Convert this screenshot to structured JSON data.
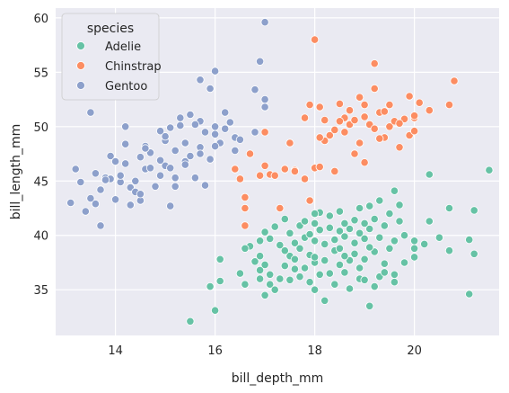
{
  "chart_data": {
    "type": "scatter",
    "title": "",
    "xlabel": "bill_depth_mm",
    "ylabel": "bill_length_mm",
    "xlim": [
      12.8,
      21.7
    ],
    "ylim": [
      30.8,
      60.9
    ],
    "xticks": [
      14,
      16,
      18,
      20
    ],
    "yticks": [
      35,
      40,
      45,
      50,
      55,
      60
    ],
    "grid": true,
    "legend": {
      "title": "species",
      "placement": "top-left"
    },
    "series": [
      {
        "name": "Adelie",
        "color": "#66c2a5",
        "points": [
          [
            15.5,
            32.1
          ],
          [
            16.0,
            33.1
          ],
          [
            15.9,
            35.3
          ],
          [
            16.1,
            35.8
          ],
          [
            16.1,
            37.8
          ],
          [
            16.5,
            36.5
          ],
          [
            16.6,
            35.5
          ],
          [
            16.8,
            37.6
          ],
          [
            16.9,
            36.0
          ],
          [
            16.9,
            36.8
          ],
          [
            17.0,
            34.5
          ],
          [
            17.1,
            35.5
          ],
          [
            17.2,
            35.0
          ],
          [
            17.1,
            36.4
          ],
          [
            17.3,
            36.0
          ],
          [
            17.4,
            37.2
          ],
          [
            17.5,
            35.9
          ],
          [
            17.6,
            36.9
          ],
          [
            17.5,
            38.1
          ],
          [
            17.6,
            37.8
          ],
          [
            17.7,
            36.2
          ],
          [
            17.8,
            37.0
          ],
          [
            17.9,
            35.7
          ],
          [
            17.9,
            38.2
          ],
          [
            18.0,
            37.5
          ],
          [
            18.0,
            35.0
          ],
          [
            18.1,
            36.4
          ],
          [
            18.2,
            37.7
          ],
          [
            18.2,
            34.0
          ],
          [
            18.3,
            36.5
          ],
          [
            18.4,
            35.5
          ],
          [
            18.4,
            38.6
          ],
          [
            18.5,
            37.3
          ],
          [
            18.5,
            38.8
          ],
          [
            18.6,
            36.6
          ],
          [
            18.7,
            35.1
          ],
          [
            18.7,
            37.7
          ],
          [
            18.8,
            38.3
          ],
          [
            18.9,
            36.0
          ],
          [
            19.0,
            35.9
          ],
          [
            19.0,
            37.8
          ],
          [
            19.1,
            33.5
          ],
          [
            19.2,
            38.5
          ],
          [
            19.2,
            35.3
          ],
          [
            19.3,
            36.2
          ],
          [
            19.4,
            37.4
          ],
          [
            19.5,
            38.8
          ],
          [
            19.6,
            36.4
          ],
          [
            19.6,
            35.7
          ],
          [
            19.8,
            37.5
          ],
          [
            16.7,
            39.0
          ],
          [
            16.9,
            39.5
          ],
          [
            17.0,
            40.3
          ],
          [
            17.1,
            39.7
          ],
          [
            17.2,
            40.8
          ],
          [
            17.3,
            39.1
          ],
          [
            17.4,
            41.5
          ],
          [
            17.5,
            40.2
          ],
          [
            17.6,
            39.3
          ],
          [
            17.7,
            40.9
          ],
          [
            17.8,
            39.8
          ],
          [
            17.8,
            41.3
          ],
          [
            17.9,
            40.1
          ],
          [
            18.0,
            39.5
          ],
          [
            18.0,
            41.1
          ],
          [
            18.1,
            40.5
          ],
          [
            18.1,
            42.1
          ],
          [
            18.2,
            39.2
          ],
          [
            18.3,
            40.7
          ],
          [
            18.3,
            41.8
          ],
          [
            18.4,
            39.6
          ],
          [
            18.5,
            40.4
          ],
          [
            18.5,
            42.2
          ],
          [
            18.6,
            41.1
          ],
          [
            18.6,
            39.9
          ],
          [
            18.7,
            40.6
          ],
          [
            18.8,
            41.4
          ],
          [
            18.8,
            39.3
          ],
          [
            18.9,
            40.2
          ],
          [
            18.9,
            42.5
          ],
          [
            19.0,
            39.7
          ],
          [
            19.0,
            41.1
          ],
          [
            19.1,
            40.6
          ],
          [
            19.1,
            38.9
          ],
          [
            19.2,
            41.5
          ],
          [
            19.3,
            39.8
          ],
          [
            19.4,
            40.9
          ],
          [
            19.5,
            42.0
          ],
          [
            19.6,
            39.5
          ],
          [
            19.7,
            41.3
          ],
          [
            19.8,
            40.0
          ],
          [
            20.0,
            38.8
          ],
          [
            20.0,
            39.5
          ],
          [
            20.2,
            39.2
          ],
          [
            20.3,
            41.3
          ],
          [
            20.5,
            39.8
          ],
          [
            20.7,
            38.6
          ],
          [
            20.7,
            42.5
          ],
          [
            21.1,
            39.6
          ],
          [
            21.1,
            34.6
          ],
          [
            21.2,
            42.3
          ],
          [
            21.2,
            38.3
          ],
          [
            21.5,
            46.0
          ],
          [
            20.3,
            45.6
          ],
          [
            19.6,
            44.1
          ],
          [
            19.3,
            43.2
          ],
          [
            19.7,
            42.8
          ],
          [
            19.1,
            42.7
          ],
          [
            17.9,
            43.2
          ],
          [
            18.0,
            42.0
          ],
          [
            16.6,
            38.8
          ],
          [
            16.9,
            38.1
          ],
          [
            17.0,
            37.3
          ],
          [
            17.4,
            38.6
          ],
          [
            17.7,
            38.8
          ],
          [
            18.0,
            38.0
          ],
          [
            18.6,
            38.1
          ],
          [
            18.9,
            37.0
          ],
          [
            19.4,
            36.6
          ],
          [
            20.0,
            38.0
          ]
        ]
      },
      {
        "name": "Chinstrap",
        "color": "#fc8d62",
        "points": [
          [
            16.4,
            46.1
          ],
          [
            16.5,
            45.2
          ],
          [
            16.6,
            42.5
          ],
          [
            16.6,
            43.5
          ],
          [
            16.6,
            40.9
          ],
          [
            16.7,
            47.5
          ],
          [
            16.9,
            45.5
          ],
          [
            17.0,
            49.5
          ],
          [
            17.1,
            45.6
          ],
          [
            17.2,
            45.5
          ],
          [
            17.3,
            42.5
          ],
          [
            17.4,
            46.1
          ],
          [
            17.5,
            48.5
          ],
          [
            17.6,
            46.0
          ],
          [
            17.8,
            45.2
          ],
          [
            17.8,
            50.8
          ],
          [
            17.9,
            43.2
          ],
          [
            18.0,
            46.2
          ],
          [
            18.0,
            58.0
          ],
          [
            18.1,
            46.3
          ],
          [
            18.1,
            51.8
          ],
          [
            18.2,
            50.6
          ],
          [
            18.3,
            49.2
          ],
          [
            18.4,
            45.9
          ],
          [
            18.5,
            52.1
          ],
          [
            18.6,
            50.8
          ],
          [
            18.7,
            50.2
          ],
          [
            18.7,
            51.5
          ],
          [
            18.8,
            50.6
          ],
          [
            18.9,
            52.7
          ],
          [
            18.9,
            48.5
          ],
          [
            19.0,
            50.9
          ],
          [
            19.0,
            52.0
          ],
          [
            19.1,
            50.2
          ],
          [
            19.2,
            53.5
          ],
          [
            19.2,
            49.8
          ],
          [
            19.3,
            51.3
          ],
          [
            19.4,
            49.0
          ],
          [
            19.5,
            50.0
          ],
          [
            19.5,
            52.0
          ],
          [
            19.6,
            50.5
          ],
          [
            19.7,
            48.1
          ],
          [
            19.8,
            50.7
          ],
          [
            19.9,
            49.2
          ],
          [
            20.0,
            49.6
          ],
          [
            20.0,
            50.8
          ],
          [
            20.1,
            52.2
          ],
          [
            20.3,
            51.5
          ],
          [
            20.7,
            52.0
          ],
          [
            20.8,
            54.2
          ],
          [
            17.9,
            52.0
          ],
          [
            18.2,
            48.7
          ],
          [
            18.5,
            50.5
          ],
          [
            18.8,
            47.5
          ],
          [
            19.0,
            46.7
          ],
          [
            19.2,
            55.8
          ],
          [
            19.4,
            51.4
          ],
          [
            19.7,
            50.3
          ],
          [
            20.0,
            51.0
          ],
          [
            18.4,
            49.7
          ],
          [
            17.0,
            46.4
          ],
          [
            17.6,
            45.9
          ],
          [
            18.1,
            49.0
          ],
          [
            18.6,
            49.5
          ],
          [
            19.3,
            48.9
          ],
          [
            19.9,
            52.8
          ]
        ]
      },
      {
        "name": "Gentoo",
        "color": "#8da0cb",
        "points": [
          [
            13.1,
            43.0
          ],
          [
            13.2,
            46.1
          ],
          [
            13.3,
            44.9
          ],
          [
            13.4,
            42.2
          ],
          [
            13.5,
            43.4
          ],
          [
            13.6,
            45.7
          ],
          [
            13.7,
            44.2
          ],
          [
            13.7,
            40.9
          ],
          [
            13.8,
            45.3
          ],
          [
            13.9,
            45.2
          ],
          [
            13.9,
            47.3
          ],
          [
            14.0,
            43.3
          ],
          [
            14.0,
            46.8
          ],
          [
            14.1,
            44.9
          ],
          [
            14.2,
            46.6
          ],
          [
            14.2,
            48.4
          ],
          [
            14.3,
            44.4
          ],
          [
            14.4,
            45.0
          ],
          [
            14.5,
            47.2
          ],
          [
            14.5,
            43.2
          ],
          [
            14.6,
            48.2
          ],
          [
            14.6,
            46.1
          ],
          [
            14.7,
            47.6
          ],
          [
            14.8,
            44.5
          ],
          [
            14.9,
            49.6
          ],
          [
            14.9,
            45.5
          ],
          [
            15.0,
            46.4
          ],
          [
            15.0,
            48.7
          ],
          [
            15.1,
            46.2
          ],
          [
            15.1,
            49.9
          ],
          [
            15.2,
            47.8
          ],
          [
            15.2,
            45.3
          ],
          [
            15.3,
            50.8
          ],
          [
            15.4,
            46.8
          ],
          [
            15.4,
            48.5
          ],
          [
            15.5,
            47.3
          ],
          [
            15.6,
            45.3
          ],
          [
            15.7,
            50.5
          ],
          [
            15.7,
            48.1
          ],
          [
            15.8,
            49.5
          ],
          [
            15.9,
            47.0
          ],
          [
            16.0,
            49.3
          ],
          [
            16.0,
            50.0
          ],
          [
            16.1,
            48.5
          ],
          [
            16.2,
            51.3
          ],
          [
            16.3,
            50.4
          ],
          [
            16.4,
            49.0
          ],
          [
            16.5,
            48.8
          ],
          [
            16.8,
            49.5
          ],
          [
            17.0,
            51.8
          ],
          [
            13.8,
            45.1
          ],
          [
            14.1,
            45.5
          ],
          [
            14.4,
            44.0
          ],
          [
            14.9,
            46.9
          ],
          [
            15.2,
            44.5
          ],
          [
            15.7,
            47.5
          ],
          [
            16.0,
            48.2
          ],
          [
            16.2,
            49.8
          ],
          [
            16.4,
            47.8
          ],
          [
            17.0,
            59.6
          ],
          [
            16.0,
            55.1
          ],
          [
            15.7,
            54.3
          ],
          [
            16.8,
            53.4
          ],
          [
            16.9,
            56.0
          ],
          [
            17.0,
            52.5
          ],
          [
            15.5,
            51.1
          ],
          [
            15.6,
            50.2
          ],
          [
            13.5,
            51.3
          ],
          [
            15.9,
            53.5
          ],
          [
            15.0,
            49.1
          ],
          [
            14.2,
            50.0
          ],
          [
            14.6,
            48.0
          ],
          [
            15.3,
            50.1
          ],
          [
            14.5,
            43.8
          ],
          [
            15.1,
            42.7
          ],
          [
            13.6,
            42.9
          ],
          [
            14.3,
            42.8
          ],
          [
            15.8,
            44.6
          ],
          [
            15.4,
            46.5
          ],
          [
            14.7,
            46.2
          ]
        ]
      }
    ]
  }
}
